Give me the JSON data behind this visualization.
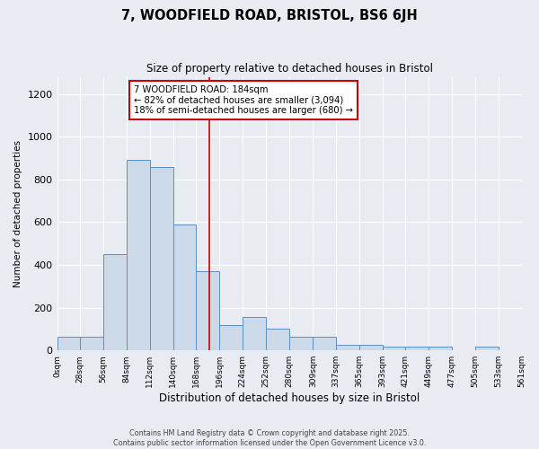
{
  "title": "7, WOODFIELD ROAD, BRISTOL, BS6 6JH",
  "subtitle": "Size of property relative to detached houses in Bristol",
  "xlabel": "Distribution of detached houses by size in Bristol",
  "ylabel": "Number of detached properties",
  "bar_color": "#ccd9e8",
  "bar_edgecolor": "#5b8fc0",
  "background_color": "#e8ecf2",
  "vline_x": 184,
  "vline_color": "#cc0000",
  "annotation_text": "7 WOODFIELD ROAD: 184sqm\n← 82% of detached houses are smaller (3,094)\n18% of semi-detached houses are larger (680) →",
  "annotation_box_color": "#ffffff",
  "annotation_box_edgecolor": "#cc0000",
  "bin_edges": [
    0,
    28,
    56,
    84,
    112,
    140,
    168,
    196,
    224,
    252,
    280,
    309,
    337,
    365,
    393,
    421,
    449,
    477,
    505,
    533,
    561
  ],
  "bar_heights": [
    65,
    65,
    450,
    890,
    860,
    590,
    370,
    120,
    155,
    100,
    65,
    65,
    28,
    28,
    18,
    18,
    18,
    0,
    18,
    0
  ],
  "ylim": [
    0,
    1280
  ],
  "yticks": [
    0,
    200,
    400,
    600,
    800,
    1000,
    1200
  ],
  "xtick_labels": [
    "0sqm",
    "28sqm",
    "56sqm",
    "84sqm",
    "112sqm",
    "140sqm",
    "168sqm",
    "196sqm",
    "224sqm",
    "252sqm",
    "280sqm",
    "309sqm",
    "337sqm",
    "365sqm",
    "393sqm",
    "421sqm",
    "449sqm",
    "477sqm",
    "505sqm",
    "533sqm",
    "561sqm"
  ],
  "footer_line1": "Contains HM Land Registry data © Crown copyright and database right 2025.",
  "footer_line2": "Contains public sector information licensed under the Open Government Licence v3.0."
}
